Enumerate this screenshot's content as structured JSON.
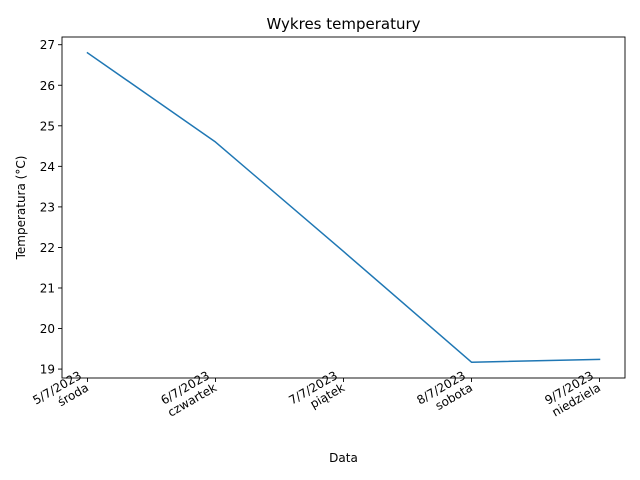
{
  "chart_data": {
    "type": "line",
    "title": "Wykres temperatury",
    "xlabel": "Data",
    "ylabel": "Temperatura (°C)",
    "categories": [
      [
        "5/7/2023",
        "środa"
      ],
      [
        "6/7/2023",
        "czwartek"
      ],
      [
        "7/7/2023",
        "piątek"
      ],
      [
        "8/7/2023",
        "sobota"
      ],
      [
        "9/7/2023",
        "niedziela"
      ]
    ],
    "series": [
      {
        "values": [
          26.8,
          24.6,
          21.9,
          19.17,
          19.24
        ],
        "color": "#1f77b4"
      }
    ],
    "yticks": [
      19,
      20,
      21,
      22,
      23,
      24,
      25,
      26,
      27
    ],
    "ylim": [
      18.78,
      27.19
    ],
    "grid": false,
    "legend": "none"
  }
}
